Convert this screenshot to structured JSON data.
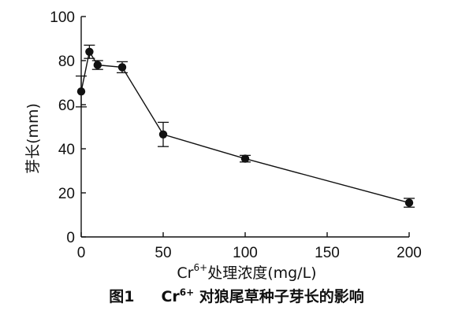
{
  "chart_data": {
    "type": "line",
    "x": [
      0,
      5,
      10,
      25,
      50,
      100,
      200
    ],
    "series": [
      {
        "values": [
          66,
          84,
          78,
          77,
          46.5,
          35.5,
          15.5
        ],
        "error": [
          7,
          3,
          2,
          2.5,
          5.5,
          1.5,
          2
        ]
      }
    ],
    "xlim": [
      0,
      200
    ],
    "ylim": [
      0,
      100
    ],
    "xticks": [
      0,
      50,
      100,
      150,
      200
    ],
    "yticks": [
      0,
      20,
      40,
      60,
      80,
      100
    ],
    "ylabel": "芽长(mm)",
    "xlabel": {
      "prefix": "Cr",
      "superscript": "6+",
      "suffix": "处理浓度(mg/L)"
    },
    "caption": {
      "figure_number": "图1",
      "prefix": "Cr",
      "superscript": "6+",
      "suffix": " 对狼尾草种子芽长的影响"
    },
    "grid": false,
    "colors": {
      "line": "#111111",
      "marker": "#111111"
    }
  }
}
